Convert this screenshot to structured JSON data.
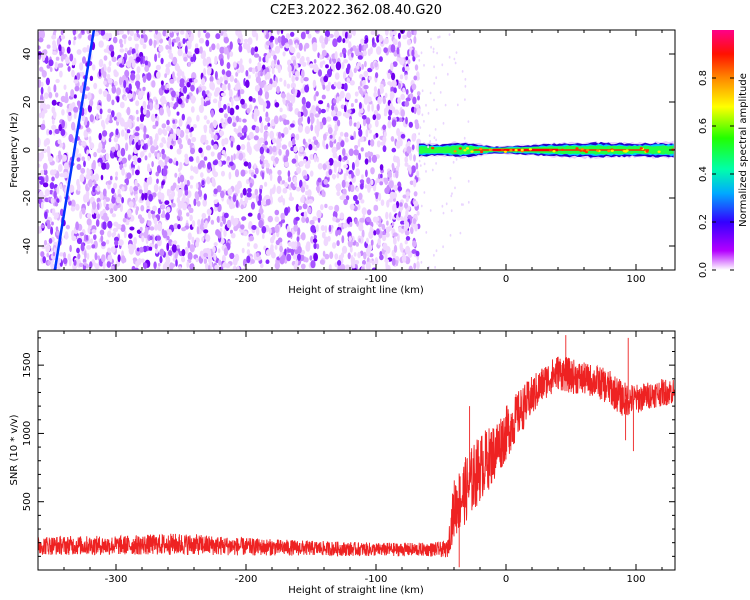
{
  "title": "C2E3.2022.362.08.40.G20",
  "chart_data": [
    {
      "type": "heatmap",
      "xlabel": "Height of straight line (km)",
      "ylabel": "Frequency (Hz)",
      "xlim": [
        -360,
        130
      ],
      "ylim": [
        -50,
        50
      ],
      "xticks": [
        -300,
        -200,
        -100,
        0,
        100
      ],
      "yticks": [
        -40,
        -20,
        0,
        20,
        40
      ],
      "noise_region_x": [
        -360,
        -67
      ],
      "signal_band": {
        "x_start": -67,
        "x_end": 130,
        "center_frequency": 0,
        "half_width_samples": [
          {
            "x": -67,
            "hw": 3
          },
          {
            "x": -50,
            "hw": 2.5
          },
          {
            "x": -35,
            "hw": 3.5
          },
          {
            "x": -20,
            "hw": 2.5
          },
          {
            "x": -10,
            "hw": 1.5
          },
          {
            "x": 10,
            "hw": 2
          },
          {
            "x": 40,
            "hw": 3
          },
          {
            "x": 70,
            "hw": 3.5
          },
          {
            "x": 100,
            "hw": 3
          },
          {
            "x": 130,
            "hw": 3.5
          }
        ],
        "peak_x": -5
      },
      "diagonal_line": {
        "from": [
          -347,
          -50
        ],
        "to": [
          -317,
          50
        ],
        "color": "#0033ff"
      },
      "colorbar": {
        "label": "Normalized spectral amplitude",
        "range": [
          0,
          1
        ],
        "ticks": [
          0.0,
          0.2,
          0.4,
          0.6,
          0.8
        ],
        "tick_labels": [
          "0.0",
          "0.2",
          "0.4",
          "0.6",
          "0.8"
        ],
        "colormap": "rainbow"
      }
    },
    {
      "type": "line",
      "xlabel": "Height of straight line (km)",
      "ylabel": "SNR (10 * v/v)",
      "xlim": [
        -360,
        130
      ],
      "ylim": [
        0,
        1750
      ],
      "xticks": [
        -300,
        -200,
        -100,
        0,
        100
      ],
      "yticks": [
        500,
        1000,
        1500
      ],
      "color": "#ee2222",
      "envelope": [
        {
          "x": -360,
          "mean": 180,
          "spread": 70
        },
        {
          "x": -300,
          "mean": 180,
          "spread": 70
        },
        {
          "x": -250,
          "mean": 190,
          "spread": 80
        },
        {
          "x": -200,
          "mean": 170,
          "spread": 65
        },
        {
          "x": -150,
          "mean": 160,
          "spread": 55
        },
        {
          "x": -100,
          "mean": 150,
          "spread": 50
        },
        {
          "x": -60,
          "mean": 150,
          "spread": 50
        },
        {
          "x": -45,
          "mean": 150,
          "spread": 60
        },
        {
          "x": -40,
          "mean": 450,
          "spread": 220
        },
        {
          "x": -30,
          "mean": 600,
          "spread": 250
        },
        {
          "x": -20,
          "mean": 750,
          "spread": 250
        },
        {
          "x": -10,
          "mean": 850,
          "spread": 220
        },
        {
          "x": 0,
          "mean": 1000,
          "spread": 200
        },
        {
          "x": 10,
          "mean": 1150,
          "spread": 170
        },
        {
          "x": 20,
          "mean": 1270,
          "spread": 150
        },
        {
          "x": 30,
          "mean": 1380,
          "spread": 130
        },
        {
          "x": 40,
          "mean": 1450,
          "spread": 130
        },
        {
          "x": 50,
          "mean": 1420,
          "spread": 130
        },
        {
          "x": 60,
          "mean": 1400,
          "spread": 120
        },
        {
          "x": 70,
          "mean": 1380,
          "spread": 120
        },
        {
          "x": 80,
          "mean": 1330,
          "spread": 130
        },
        {
          "x": 90,
          "mean": 1250,
          "spread": 130
        },
        {
          "x": 100,
          "mean": 1250,
          "spread": 110
        },
        {
          "x": 110,
          "mean": 1280,
          "spread": 100
        },
        {
          "x": 120,
          "mean": 1300,
          "spread": 100
        },
        {
          "x": 130,
          "mean": 1310,
          "spread": 100
        }
      ],
      "spikes": [
        {
          "x": 46,
          "y": 1720
        },
        {
          "x": 94,
          "y": 1700
        },
        {
          "x": 98,
          "y": 870
        },
        {
          "x": 92,
          "y": 950
        },
        {
          "x": -36,
          "y": 20
        },
        {
          "x": -28,
          "y": 1200
        }
      ]
    }
  ]
}
